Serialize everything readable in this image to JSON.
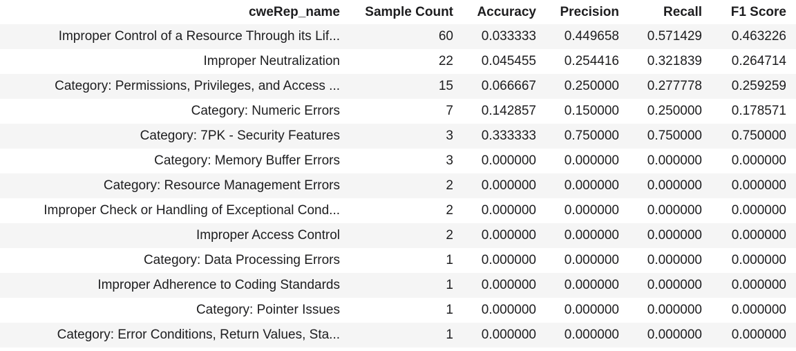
{
  "table": {
    "columns": [
      "cweRep_name",
      "Sample Count",
      "Accuracy",
      "Precision",
      "Recall",
      "F1 Score"
    ],
    "rows": [
      [
        "Improper Control of a Resource Through its Lif...",
        "60",
        "0.033333",
        "0.449658",
        "0.571429",
        "0.463226"
      ],
      [
        "Improper Neutralization",
        "22",
        "0.045455",
        "0.254416",
        "0.321839",
        "0.264714"
      ],
      [
        "Category: Permissions, Privileges, and Access ...",
        "15",
        "0.066667",
        "0.250000",
        "0.277778",
        "0.259259"
      ],
      [
        "Category: Numeric Errors",
        "7",
        "0.142857",
        "0.150000",
        "0.250000",
        "0.178571"
      ],
      [
        "Category: 7PK - Security Features",
        "3",
        "0.333333",
        "0.750000",
        "0.750000",
        "0.750000"
      ],
      [
        "Category: Memory Buffer Errors",
        "3",
        "0.000000",
        "0.000000",
        "0.000000",
        "0.000000"
      ],
      [
        "Category: Resource Management Errors",
        "2",
        "0.000000",
        "0.000000",
        "0.000000",
        "0.000000"
      ],
      [
        "Improper Check or Handling of Exceptional Cond...",
        "2",
        "0.000000",
        "0.000000",
        "0.000000",
        "0.000000"
      ],
      [
        "Improper Access Control",
        "2",
        "0.000000",
        "0.000000",
        "0.000000",
        "0.000000"
      ],
      [
        "Category: Data Processing Errors",
        "1",
        "0.000000",
        "0.000000",
        "0.000000",
        "0.000000"
      ],
      [
        "Improper Adherence to Coding Standards",
        "1",
        "0.000000",
        "0.000000",
        "0.000000",
        "0.000000"
      ],
      [
        "Category: Pointer Issues",
        "1",
        "0.000000",
        "0.000000",
        "0.000000",
        "0.000000"
      ],
      [
        "Category: Error Conditions, Return Values, Sta...",
        "1",
        "0.000000",
        "0.000000",
        "0.000000",
        "0.000000"
      ]
    ]
  }
}
